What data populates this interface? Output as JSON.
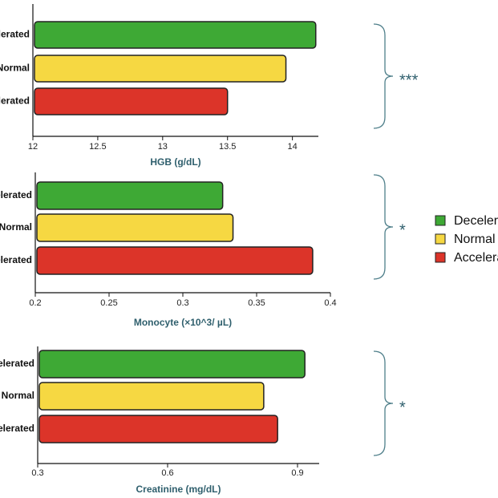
{
  "chart_data": [
    {
      "type": "bar",
      "orientation": "horizontal",
      "xlabel": "HGB (g/dL)",
      "categories": [
        "Decelerated",
        "Normal",
        "Accelerated"
      ],
      "values": [
        14.18,
        13.95,
        13.5
      ],
      "colors": [
        "#3ea935",
        "#f6d842",
        "#dc3429"
      ],
      "xlim": [
        12,
        14.2
      ],
      "xticks": [
        12,
        12.5,
        13,
        13.5,
        14
      ],
      "annotation": "***"
    },
    {
      "type": "bar",
      "orientation": "horizontal",
      "xlabel": "Monocyte (×10^3/ µL)",
      "categories": [
        "Decelerated",
        "Normal",
        "Accelerated"
      ],
      "values": [
        0.327,
        0.334,
        0.388
      ],
      "colors": [
        "#3ea935",
        "#f6d842",
        "#dc3429"
      ],
      "xlim": [
        0.2,
        0.4
      ],
      "xticks": [
        0.2,
        0.25,
        0.3,
        0.35,
        0.4
      ],
      "annotation": "*"
    },
    {
      "type": "bar",
      "orientation": "horizontal",
      "xlabel": "Creatinine (mg/dL)",
      "categories": [
        "Decelerated",
        "Normal",
        "Accelerated"
      ],
      "values": [
        0.917,
        0.822,
        0.854
      ],
      "colors": [
        "#3ea935",
        "#f6d842",
        "#dc3429"
      ],
      "xlim": [
        0.3,
        0.95
      ],
      "xticks": [
        0.3,
        0.6,
        0.9
      ],
      "annotation": "*"
    }
  ]
}
